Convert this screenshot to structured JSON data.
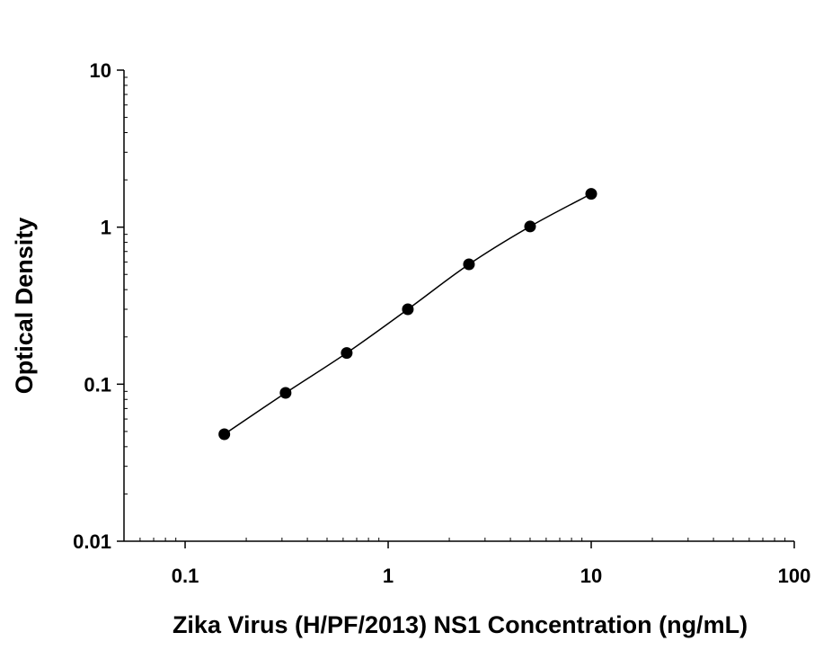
{
  "chart_data": {
    "type": "scatter",
    "title": "",
    "xlabel": "Zika Virus (H/PF/2013) NS1 Concentration (ng/mL)",
    "ylabel": "Optical Density",
    "xscale": "log",
    "yscale": "log",
    "xlim": [
      0.05,
      100
    ],
    "ylim": [
      0.01,
      10
    ],
    "xticks": [
      "0.1",
      "1",
      "10",
      "100"
    ],
    "yticks": [
      "0.01",
      "0.1",
      "1",
      "10"
    ],
    "grid": false,
    "legend": "none",
    "fit_curve": true,
    "marker_color": "#000000",
    "series": [
      {
        "x": [
          0.156,
          0.3125,
          0.625,
          1.25,
          2.5,
          5,
          10
        ],
        "y": [
          0.048,
          0.088,
          0.158,
          0.3,
          0.58,
          1.01,
          1.63
        ]
      }
    ]
  }
}
